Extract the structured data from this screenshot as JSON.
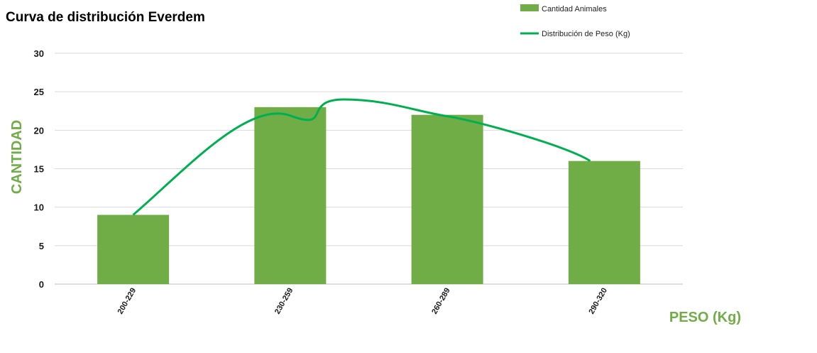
{
  "chart_data": {
    "type": "bar",
    "title": "Curva de distribución Everdem",
    "xlabel": "PESO (Kg)",
    "ylabel": "CANTIDAD",
    "categories": [
      "200-229",
      "230-259",
      "260-289",
      "290-320"
    ],
    "ylim": [
      0,
      30
    ],
    "yticks": [
      0,
      5,
      10,
      15,
      20,
      25,
      30
    ],
    "grid": true,
    "legend_position": "top-right",
    "series": [
      {
        "name": "Cantidad Animales",
        "type": "bar",
        "values": [
          9,
          23,
          22,
          16
        ]
      },
      {
        "name": "Distribución de Peso (Kg)",
        "type": "line",
        "smooth": true,
        "values": [
          9,
          23,
          22,
          16
        ],
        "peak_value": 24
      }
    ]
  },
  "colors": {
    "bar": "#70ad47",
    "line": "#00b050",
    "axis_label": "#70ad47",
    "title": "#000000"
  }
}
